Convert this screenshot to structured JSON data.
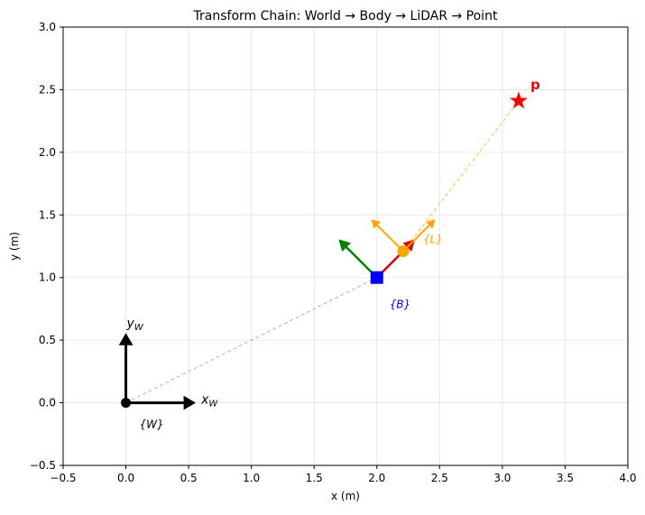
{
  "chart_data": {
    "type": "scatter",
    "title": "Transform Chain: World → Body → LiDAR → Point",
    "xlabel": "x (m)",
    "ylabel": "y (m)",
    "xlim": [
      -0.5,
      4.0
    ],
    "ylim": [
      -0.5,
      3.0
    ],
    "xticks": [
      -0.5,
      0.0,
      0.5,
      1.0,
      1.5,
      2.0,
      2.5,
      3.0,
      3.5,
      4.0
    ],
    "yticks": [
      -0.5,
      0.0,
      0.5,
      1.0,
      1.5,
      2.0,
      2.5,
      3.0
    ],
    "xtick_labels": [
      "−0.5",
      "0.0",
      "0.5",
      "1.0",
      "1.5",
      "2.0",
      "2.5",
      "3.0",
      "3.5",
      "4.0"
    ],
    "ytick_labels": [
      "−0.5",
      "0.0",
      "0.5",
      "1.0",
      "1.5",
      "2.0",
      "2.5",
      "3.0"
    ],
    "grid": true,
    "frames": {
      "world": {
        "origin": [
          0.0,
          0.0
        ],
        "x_tip": [
          0.55,
          0.0
        ],
        "y_tip": [
          0.0,
          0.55
        ],
        "label": "{W}",
        "x_axis_label": "x",
        "x_axis_sub": "W",
        "y_axis_label": "y",
        "y_axis_sub": "W",
        "color": "#000000"
      },
      "body": {
        "origin": [
          2.0,
          1.0
        ],
        "x_tip": [
          2.3,
          1.3
        ],
        "y_tip": [
          1.7,
          1.3
        ],
        "label": "{B}",
        "x_color": "#dd0000",
        "y_color": "#008000",
        "marker_color": "#0000ff"
      },
      "lidar": {
        "origin": [
          2.21,
          1.21
        ],
        "x_tip": [
          2.46,
          1.46
        ],
        "y_tip": [
          1.96,
          1.46
        ],
        "label": "{L}",
        "color": "#ffa500"
      }
    },
    "point": {
      "x": 3.13,
      "y": 2.41,
      "label": "p",
      "color": "#ff0000"
    },
    "links": [
      {
        "from": [
          0.0,
          0.0
        ],
        "to": [
          2.0,
          1.0
        ],
        "color": "#999999"
      },
      {
        "from": [
          2.21,
          1.21
        ],
        "to": [
          3.13,
          2.41
        ],
        "color": "#ffa500"
      }
    ]
  }
}
